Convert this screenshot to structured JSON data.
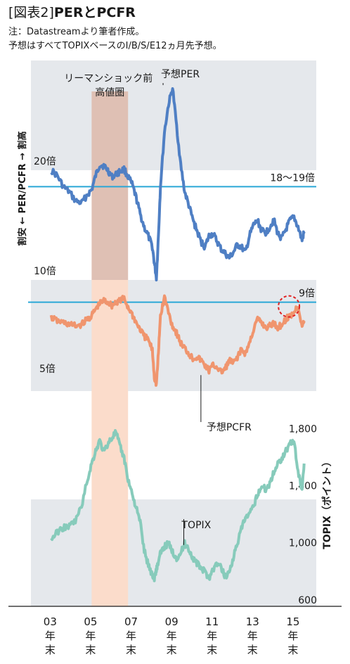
{
  "header": {
    "title_bracket": "[図表2]",
    "title_main": "PERとPCFR",
    "note_line1": "注：Datastreamより筆者作成。",
    "note_line2": "予想はすべてTOPIXベースのI/B/S/E12ヵ月先予想。"
  },
  "colors": {
    "per": "#4f7fc4",
    "pcfr": "#f0956e",
    "topix": "#87cbbb",
    "band": "#e5e8ec",
    "lehman_band_top": "#fbdccb",
    "lehman_band_bottom": "#dfc0b4",
    "ref_line": "#2aa7d6",
    "highlight": "#e02020"
  },
  "chart_data": {
    "type": "line",
    "title": "",
    "xlabel": "",
    "x_ticks": [
      {
        "x": 2003.95,
        "num": "03",
        "suffix1": "年",
        "suffix2": "末"
      },
      {
        "x": 2005.95,
        "num": "05",
        "suffix1": "年",
        "suffix2": "末"
      },
      {
        "x": 2007.95,
        "num": "07",
        "suffix1": "年",
        "suffix2": "末"
      },
      {
        "x": 2009.95,
        "num": "09",
        "suffix1": "年",
        "suffix2": "末"
      },
      {
        "x": 2011.95,
        "num": "11",
        "suffix1": "年",
        "suffix2": "末"
      },
      {
        "x": 2013.95,
        "num": "13",
        "suffix1": "年",
        "suffix2": "末"
      },
      {
        "x": 2015.95,
        "num": "15",
        "suffix1": "年",
        "suffix2": "末"
      }
    ],
    "x_range": [
      2003,
      2017.1
    ],
    "shaded_period": {
      "label_line1": "リーマンショック前",
      "label_line2": "高値圏",
      "x_start": 2006.0,
      "x_end": 2007.8
    },
    "left_axis_label": "割安 ← PER/PCFR → 割高",
    "right_axis_label": "TOPIX（ポイント）",
    "series": [
      {
        "key": "per",
        "name": "予想PER",
        "axis": "left-upper",
        "x": [
          2004.0,
          2004.3,
          2004.6,
          2004.9,
          2005.2,
          2005.5,
          2005.8,
          2006.0,
          2006.2,
          2006.4,
          2006.6,
          2006.8,
          2007.0,
          2007.2,
          2007.4,
          2007.6,
          2007.8,
          2008.0,
          2008.2,
          2008.4,
          2008.6,
          2008.8,
          2009.0,
          2009.1,
          2009.2,
          2009.3,
          2009.4,
          2009.6,
          2009.8,
          2010.0,
          2010.2,
          2010.4,
          2010.6,
          2010.8,
          2011.0,
          2011.2,
          2011.4,
          2011.6,
          2011.8,
          2012.0,
          2012.2,
          2012.4,
          2012.6,
          2012.8,
          2013.0,
          2013.2,
          2013.4,
          2013.6,
          2013.8,
          2014.0,
          2014.2,
          2014.4,
          2014.6,
          2014.8,
          2015.0,
          2015.2,
          2015.4,
          2015.6,
          2015.8,
          2016.0,
          2016.2,
          2016.4,
          2016.5
        ],
        "values": [
          20.0,
          19.5,
          18.5,
          18.0,
          17.2,
          17.0,
          17.8,
          18.2,
          19.5,
          20.5,
          20.4,
          20.0,
          19.4,
          19.6,
          19.9,
          20.1,
          19.4,
          18.7,
          17.5,
          16.0,
          14.8,
          14.0,
          13.0,
          11.5,
          10.2,
          14.0,
          18.5,
          23.5,
          26.0,
          27.5,
          24.0,
          20.5,
          18.0,
          16.8,
          15.5,
          14.5,
          13.5,
          13.0,
          14.0,
          14.2,
          13.5,
          12.8,
          12.4,
          12.0,
          12.5,
          13.2,
          13.0,
          12.5,
          14.0,
          15.0,
          15.4,
          14.5,
          14.3,
          14.8,
          15.5,
          14.2,
          13.8,
          14.6,
          15.4,
          15.7,
          14.8,
          13.6,
          14.4
        ],
        "label_anchor": [
          2009.6,
          27.5
        ]
      },
      {
        "key": "pcfr",
        "name": "予想PCFR",
        "axis": "left-lower",
        "x": [
          2004.0,
          2004.3,
          2004.6,
          2004.9,
          2005.2,
          2005.5,
          2005.8,
          2006.0,
          2006.2,
          2006.4,
          2006.6,
          2006.8,
          2007.0,
          2007.2,
          2007.4,
          2007.6,
          2007.8,
          2008.0,
          2008.2,
          2008.4,
          2008.6,
          2008.8,
          2009.0,
          2009.1,
          2009.2,
          2009.3,
          2009.4,
          2009.6,
          2009.8,
          2010.0,
          2010.2,
          2010.4,
          2010.6,
          2010.8,
          2011.0,
          2011.2,
          2011.4,
          2011.6,
          2011.8,
          2012.0,
          2012.2,
          2012.4,
          2012.6,
          2012.8,
          2013.0,
          2013.2,
          2013.4,
          2013.6,
          2013.8,
          2014.0,
          2014.2,
          2014.4,
          2014.6,
          2014.8,
          2015.0,
          2015.2,
          2015.4,
          2015.6,
          2015.8,
          2016.0,
          2016.2,
          2016.4,
          2016.5
        ],
        "values": [
          8.1,
          7.9,
          7.8,
          7.7,
          7.6,
          7.7,
          8.0,
          8.2,
          8.6,
          8.9,
          9.1,
          9.0,
          8.8,
          9.0,
          9.1,
          9.2,
          8.7,
          8.3,
          7.8,
          7.4,
          7.0,
          6.8,
          6.2,
          4.6,
          4.2,
          6.0,
          8.2,
          9.3,
          8.4,
          7.6,
          7.2,
          6.6,
          6.3,
          6.0,
          5.7,
          5.8,
          5.6,
          5.3,
          5.0,
          5.3,
          5.2,
          4.9,
          5.1,
          5.6,
          5.4,
          5.8,
          6.2,
          6.0,
          6.6,
          7.4,
          8.0,
          7.8,
          7.5,
          7.6,
          7.8,
          7.5,
          7.7,
          8.0,
          8.2,
          8.4,
          8.8,
          7.6,
          7.9
        ],
        "label_anchor": [
          2011.4,
          4.9
        ]
      },
      {
        "key": "topix",
        "name": "TOPIX",
        "axis": "right",
        "x": [
          2004.0,
          2004.3,
          2004.6,
          2004.9,
          2005.2,
          2005.5,
          2005.8,
          2006.0,
          2006.2,
          2006.4,
          2006.6,
          2006.8,
          2007.0,
          2007.2,
          2007.4,
          2007.6,
          2007.8,
          2008.0,
          2008.2,
          2008.4,
          2008.6,
          2008.8,
          2009.0,
          2009.1,
          2009.2,
          2009.3,
          2009.4,
          2009.6,
          2009.8,
          2010.0,
          2010.2,
          2010.4,
          2010.6,
          2010.8,
          2011.0,
          2011.2,
          2011.4,
          2011.6,
          2011.8,
          2012.0,
          2012.2,
          2012.4,
          2012.6,
          2012.8,
          2013.0,
          2013.2,
          2013.4,
          2013.6,
          2013.8,
          2014.0,
          2014.2,
          2014.4,
          2014.6,
          2014.8,
          2015.0,
          2015.2,
          2015.4,
          2015.6,
          2015.8,
          2016.0,
          2016.2,
          2016.4,
          2016.5
        ],
        "values": [
          1030,
          1080,
          1110,
          1120,
          1160,
          1260,
          1450,
          1560,
          1650,
          1720,
          1640,
          1700,
          1740,
          1780,
          1680,
          1600,
          1450,
          1350,
          1250,
          1150,
          950,
          850,
          780,
          760,
          820,
          870,
          930,
          980,
          1000,
          940,
          900,
          930,
          1000,
          960,
          900,
          860,
          830,
          800,
          760,
          820,
          860,
          830,
          770,
          800,
          900,
          1000,
          1100,
          1180,
          1200,
          1260,
          1350,
          1400,
          1380,
          1420,
          1500,
          1560,
          1600,
          1650,
          1700,
          1720,
          1500,
          1380,
          1560
        ],
        "label_anchor": [
          2011.7,
          980
        ]
      }
    ],
    "left_upper": {
      "ylim": [
        10,
        30
      ],
      "ticks": [
        {
          "value": 20,
          "label": "20倍"
        },
        {
          "value": 10,
          "label": "10倍"
        }
      ],
      "ref_value": 18.5,
      "ref_label": "18〜19倍"
    },
    "left_lower": {
      "ylim": [
        3.8,
        10.3
      ],
      "ticks": [
        {
          "value": 5,
          "label": "5倍"
        }
      ],
      "ref_value": 9,
      "ref_label": "9倍"
    },
    "right_axis": {
      "ylim": [
        560,
        1900
      ],
      "ticks": [
        {
          "value": 1800,
          "label": "1,800"
        },
        {
          "value": 1400,
          "label": "1,400"
        },
        {
          "value": 1000,
          "label": "1,000"
        },
        {
          "value": 600,
          "label": "600"
        }
      ]
    },
    "highlight_point": {
      "series": "pcfr",
      "x": 2015.75,
      "y": 8.75
    },
    "grid": false
  }
}
